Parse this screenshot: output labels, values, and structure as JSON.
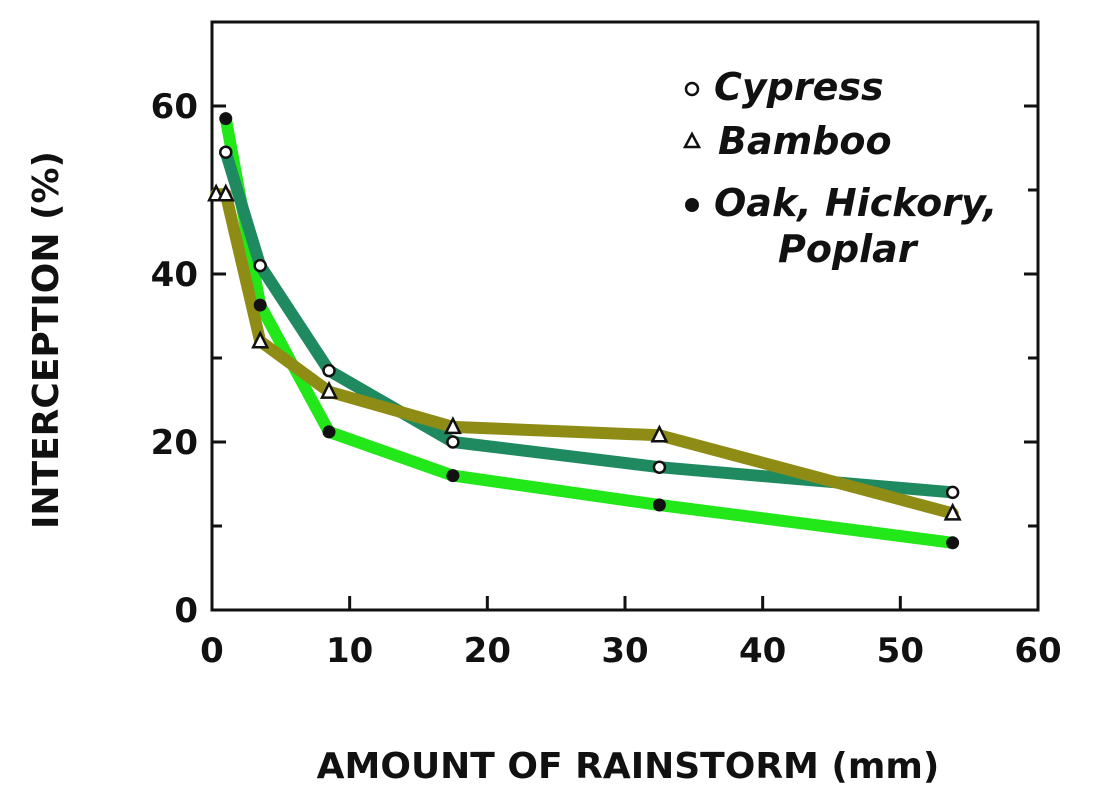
{
  "chart_data": {
    "type": "line",
    "title": "",
    "xlabel": "AMOUNT OF RAINSTORM (mm)",
    "ylabel": "INTERCEPTION (%)",
    "xlim": [
      0,
      60
    ],
    "ylim": [
      0,
      70
    ],
    "x_ticks": [
      0,
      10,
      20,
      30,
      40,
      50,
      60
    ],
    "y_ticks": [
      0,
      20,
      40,
      60
    ],
    "grid": false,
    "legend_position": "top-right",
    "series": [
      {
        "name": "Cypress",
        "marker": "open-circle",
        "color": "#1f8a60",
        "x": [
          1,
          3.5,
          8.5,
          17.5,
          32.5,
          53.8
        ],
        "y": [
          54.5,
          41,
          28.5,
          20,
          17,
          14
        ]
      },
      {
        "name": "Bamboo",
        "marker": "open-triangle",
        "color": "#8f8c16",
        "x": [
          0.3,
          1,
          3.5,
          8.5,
          17.5,
          32.5,
          53.8
        ],
        "y": [
          49.5,
          49.5,
          32,
          26,
          21.8,
          20.8,
          11.5
        ]
      },
      {
        "name": "Oak, Hickory, Poplar",
        "legend_lines": [
          "Oak, Hickory,",
          "Poplar"
        ],
        "marker": "filled-circle",
        "color": "#22e81a",
        "x": [
          1,
          3.5,
          8.5,
          17.5,
          32.5,
          53.8
        ],
        "y": [
          58.5,
          36.3,
          21.2,
          16,
          12.5,
          8
        ]
      }
    ]
  }
}
